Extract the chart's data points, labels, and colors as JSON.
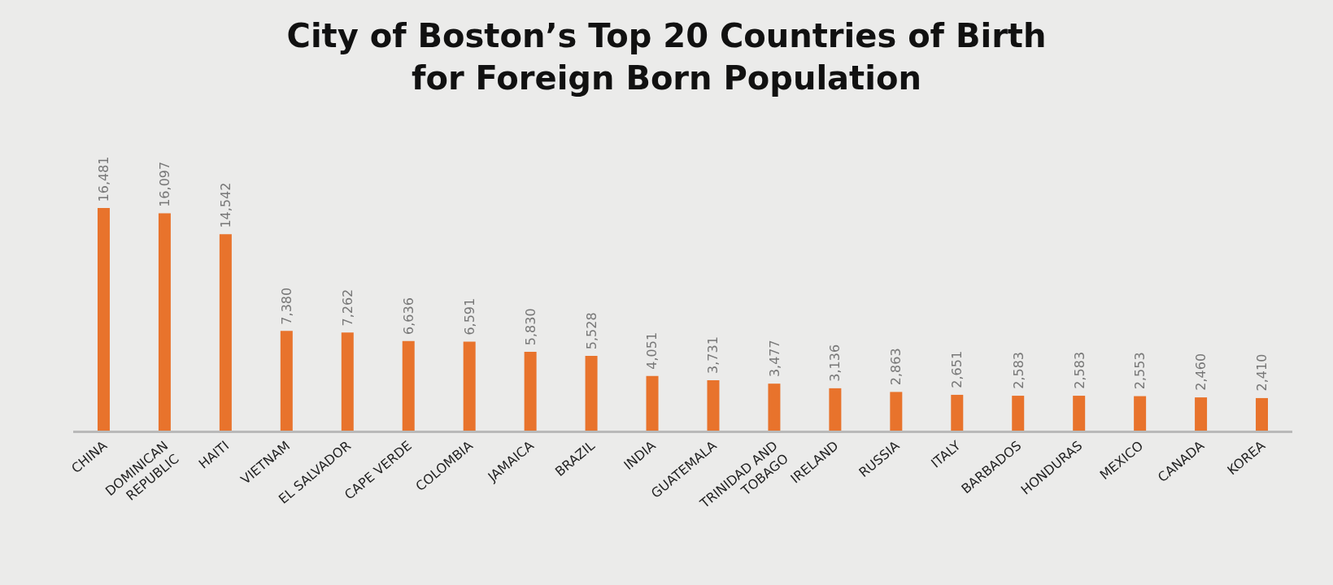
{
  "chart_data": {
    "type": "bar",
    "title": "City of Boston’s Top 20 Countries of Birth\nfor Foreign Born Population",
    "categories": [
      "CHINA",
      "DOMINICAN REPUBLIC",
      "HAITI",
      "VIETNAM",
      "EL SALVADOR",
      "CAPE VERDE",
      "COLOMBIA",
      "JAMAICA",
      "BRAZIL",
      "INDIA",
      "GUATEMALA",
      "TRINIDAD AND TOBAGO",
      "IRELAND",
      "RUSSIA",
      "ITALY",
      "BARBADOS",
      "HONDURAS",
      "MEXICO",
      "CANADA",
      "KOREA"
    ],
    "values": [
      16481,
      16097,
      14542,
      7380,
      7262,
      6636,
      6591,
      5830,
      5528,
      4051,
      3731,
      3477,
      3136,
      2863,
      2651,
      2583,
      2583,
      2553,
      2460,
      2410
    ],
    "value_labels": [
      "16,481",
      "16,097",
      "14,542",
      "7,380",
      "7,262",
      "6,636",
      "6,591",
      "5,830",
      "5,528",
      "4,051",
      "3,731",
      "3,477",
      "3,136",
      "2,863",
      "2,651",
      "2,583",
      "2,583",
      "2,553",
      "2,460",
      "2,410"
    ],
    "color": "#e8732c",
    "grid": false,
    "legend": false
  }
}
